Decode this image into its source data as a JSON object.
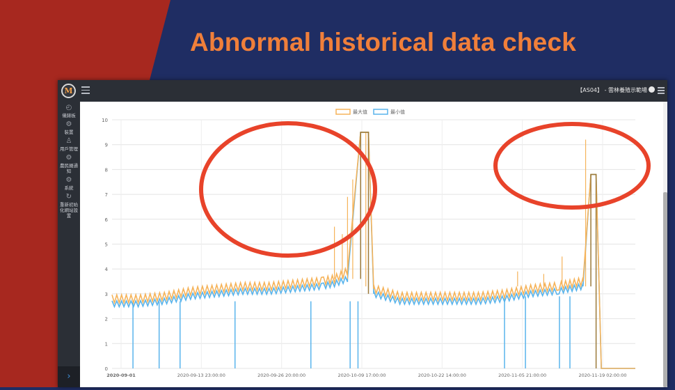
{
  "slide": {
    "title": "Abnormal historical data check",
    "colors": {
      "background": "#1f2d63",
      "red_panel": "#a7281f",
      "title": "#f07f3a",
      "annotation_circle": "#e8432a"
    }
  },
  "app": {
    "logo_text": "M",
    "site_label": "【AS04】 - 雲林養殖示範場",
    "sidebar": {
      "items": [
        {
          "label": "儀錶板",
          "icon": "dashboard-icon",
          "glyph": "◴"
        },
        {
          "label": "裝置",
          "icon": "gear-icon",
          "glyph": "⚙"
        },
        {
          "label": "用戶管理",
          "icon": "users-icon",
          "glyph": "♙"
        },
        {
          "label": "農民圈通知",
          "icon": "gear-icon",
          "glyph": "⚙"
        },
        {
          "label": "系統",
          "icon": "gear-icon",
          "glyph": "⚙"
        },
        {
          "label": "重新初始化網站設置",
          "icon": "refresh-icon",
          "glyph": "↻"
        }
      ],
      "toggle_glyph": "›"
    }
  },
  "chart_data": {
    "type": "line",
    "legend": [
      {
        "name": "最大值",
        "color": "#f5b35a"
      },
      {
        "name": "最小值",
        "color": "#59b4ec"
      }
    ],
    "legend_position": "top-center",
    "ylim": [
      0,
      10
    ],
    "y_ticks": [
      "0",
      "1",
      "2",
      "3",
      "4",
      "5",
      "6",
      "7",
      "8",
      "9",
      "10"
    ],
    "x_tick_labels": [
      "2020-09-01",
      "2020-09-13 23:00:00",
      "2020-09-26 20:00:00",
      "2020-10-09 17:00:00",
      "2020-10-22 14:00:00",
      "2020-11-05 21:00:00",
      "2020-11-19 02:00:00"
    ],
    "grid": true,
    "series": [
      {
        "name": "最大值",
        "points": [
          [
            0,
            2.8
          ],
          [
            10,
            2.8
          ],
          [
            20,
            2.9
          ],
          [
            30,
            3.1
          ],
          [
            40,
            3.2
          ],
          [
            50,
            3.3
          ],
          [
            60,
            3.3
          ],
          [
            70,
            3.4
          ],
          [
            80,
            3.5
          ],
          [
            85,
            3.6
          ],
          [
            90,
            3.9
          ],
          [
            95,
            9.5
          ],
          [
            98,
            9.5
          ],
          [
            100,
            3.2
          ],
          [
            110,
            2.9
          ],
          [
            120,
            2.9
          ],
          [
            130,
            2.9
          ],
          [
            140,
            2.9
          ],
          [
            150,
            3.0
          ],
          [
            160,
            3.2
          ],
          [
            170,
            3.3
          ],
          [
            175,
            3.4
          ],
          [
            180,
            3.5
          ],
          [
            183,
            7.8
          ],
          [
            185,
            7.8
          ],
          [
            187,
            0
          ],
          [
            200,
            0
          ]
        ],
        "spikes": [
          [
            85,
            5.7
          ],
          [
            88,
            5.4
          ],
          [
            90,
            6.9
          ],
          [
            92,
            7.6
          ],
          [
            97,
            9.5
          ],
          [
            155,
            3.9
          ],
          [
            165,
            3.8
          ],
          [
            172,
            4.5
          ],
          [
            181,
            9.2
          ]
        ]
      },
      {
        "name": "最小值",
        "points": [
          [
            0,
            2.6
          ],
          [
            10,
            2.6
          ],
          [
            20,
            2.7
          ],
          [
            30,
            2.9
          ],
          [
            40,
            3.0
          ],
          [
            50,
            3.1
          ],
          [
            60,
            3.1
          ],
          [
            70,
            3.2
          ],
          [
            80,
            3.3
          ],
          [
            85,
            3.4
          ],
          [
            90,
            3.6
          ],
          [
            95,
            9.5
          ],
          [
            98,
            9.5
          ],
          [
            100,
            3.0
          ],
          [
            110,
            2.7
          ],
          [
            120,
            2.7
          ],
          [
            130,
            2.7
          ],
          [
            140,
            2.7
          ],
          [
            150,
            2.8
          ],
          [
            160,
            3.0
          ],
          [
            170,
            3.1
          ],
          [
            175,
            3.2
          ],
          [
            180,
            3.3
          ],
          [
            183,
            7.8
          ],
          [
            185,
            7.8
          ],
          [
            187,
            0
          ],
          [
            200,
            0
          ]
        ],
        "dips": [
          [
            8,
            0
          ],
          [
            18,
            0
          ],
          [
            26,
            0
          ],
          [
            47,
            0
          ],
          [
            76,
            0
          ],
          [
            91,
            0
          ],
          [
            94,
            0
          ],
          [
            150,
            0
          ],
          [
            158,
            0
          ],
          [
            171,
            0
          ],
          [
            175,
            0
          ]
        ]
      }
    ],
    "annotations": [
      {
        "shape": "ellipse",
        "label": "",
        "around_x": [
          68,
          108
        ],
        "around_y": [
          4.5,
          10
        ]
      },
      {
        "shape": "ellipse",
        "label": "",
        "around_x": [
          170,
          200
        ],
        "around_y": [
          6.5,
          9.8
        ]
      }
    ]
  }
}
